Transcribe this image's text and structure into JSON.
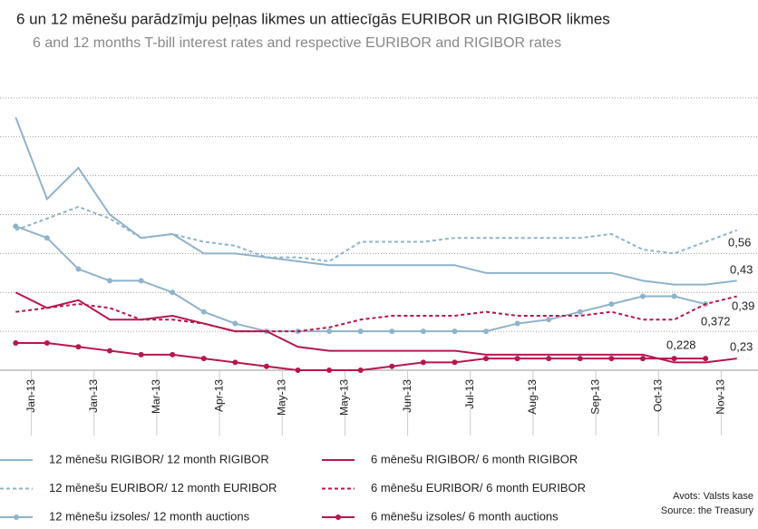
{
  "chart_data": {
    "type": "line",
    "title": "6 un 12 mēnešu parādzīmju peļņas likmes un attiecīgās EURIBOR un RIGIBOR likmes",
    "subtitle": "6 and 12 months T-bill interest rates and respective EURIBOR and RIGIBOR rates",
    "categories": [
      "Jan-13",
      null,
      "Jan-13",
      null,
      "Mar-13",
      null,
      "Apr-13",
      null,
      "May-13",
      null,
      "May-13",
      null,
      "Jun-13",
      null,
      "Jul-13",
      null,
      "Aug-13",
      null,
      "Sep-13",
      null,
      "Oct-13",
      null,
      "Nov-13",
      null
    ],
    "ylim": [
      0.2,
      1.0
    ],
    "yticks": [
      0.2,
      0.3,
      0.4,
      0.5,
      0.6,
      0.7,
      0.8,
      0.9
    ],
    "grid": true,
    "series": [
      {
        "name": "12 mēnešu RIGIBOR/ 12 month RIGIBOR",
        "color": "#8fb3cc",
        "style": "solid",
        "values": [
          0.85,
          0.64,
          0.72,
          0.6,
          0.54,
          0.55,
          0.5,
          0.5,
          0.49,
          0.48,
          0.47,
          0.47,
          0.47,
          0.47,
          0.47,
          0.45,
          0.45,
          0.45,
          0.45,
          0.45,
          0.43,
          0.42,
          0.42,
          0.43
        ]
      },
      {
        "name": "12 mēnešu EURIBOR/ 12 month EURIBOR",
        "color": "#8fb3cc",
        "style": "dashed",
        "values": [
          0.56,
          0.59,
          0.62,
          0.59,
          0.54,
          0.55,
          0.53,
          0.52,
          0.49,
          0.49,
          0.48,
          0.53,
          0.53,
          0.53,
          0.54,
          0.54,
          0.54,
          0.54,
          0.54,
          0.55,
          0.51,
          0.5,
          0.53,
          0.56
        ]
      },
      {
        "name": "12 mēnešu izsoles/ 12 month auctions",
        "color": "#8fb3cc",
        "style": "dots",
        "values": [
          0.57,
          0.54,
          0.46,
          0.43,
          0.43,
          0.4,
          0.35,
          0.32,
          0.3,
          0.3,
          0.3,
          0.3,
          0.3,
          0.3,
          0.3,
          0.3,
          0.32,
          0.33,
          0.35,
          0.37,
          0.39,
          0.39,
          0.37,
          null
        ]
      },
      {
        "name": "6 mēnešu RIGIBOR/ 6 month RIGIBOR",
        "color": "#b5174f",
        "style": "solid",
        "values": [
          0.4,
          0.36,
          0.38,
          0.33,
          0.33,
          0.34,
          0.32,
          0.3,
          0.3,
          0.26,
          0.25,
          0.25,
          0.25,
          0.25,
          0.25,
          0.24,
          0.24,
          0.24,
          0.24,
          0.24,
          0.24,
          0.22,
          0.22,
          0.23
        ]
      },
      {
        "name": "6 mēnešu EURIBOR/ 6 month EURIBOR",
        "color": "#b5174f",
        "style": "dashed",
        "values": [
          0.35,
          0.36,
          0.37,
          0.36,
          0.33,
          0.33,
          0.32,
          0.3,
          0.3,
          0.3,
          0.31,
          0.33,
          0.34,
          0.34,
          0.34,
          0.35,
          0.34,
          0.34,
          0.34,
          0.35,
          0.33,
          0.33,
          0.37,
          0.39
        ]
      },
      {
        "name": "6 mēnešu izsoles/ 6 month auctions",
        "color": "#b5174f",
        "style": "dots",
        "values": [
          0.27,
          0.27,
          0.26,
          0.25,
          0.24,
          0.24,
          0.23,
          0.22,
          0.21,
          0.2,
          0.2,
          0.2,
          0.21,
          0.22,
          0.22,
          0.23,
          0.23,
          0.23,
          0.23,
          0.23,
          0.23,
          0.23,
          0.23,
          null
        ]
      }
    ],
    "annotations": [
      "0,56",
      "0,43",
      "0,39",
      "0,372",
      "0,228",
      "0,23"
    ],
    "source": [
      "Avots: Valsts kase",
      "Source: the Treasury"
    ]
  }
}
